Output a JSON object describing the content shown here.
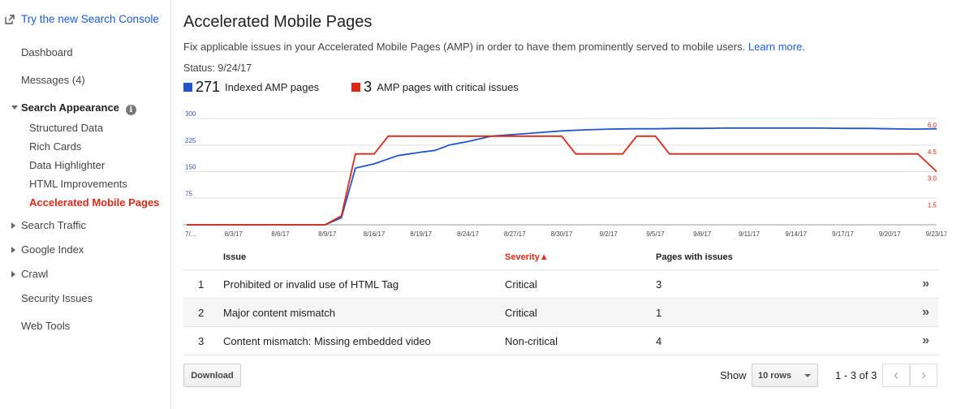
{
  "sidebar": {
    "console_link": "Try the new Search Console",
    "items": {
      "dashboard": "Dashboard",
      "messages": "Messages (4)",
      "search_appearance": "Search Appearance",
      "structured_data": "Structured Data",
      "rich_cards": "Rich Cards",
      "data_highlighter": "Data Highlighter",
      "html_improvements": "HTML Improvements",
      "amp": "Accelerated Mobile Pages",
      "search_traffic": "Search Traffic",
      "google_index": "Google Index",
      "crawl": "Crawl",
      "security_issues": "Security Issues",
      "web_tools": "Web Tools"
    }
  },
  "main": {
    "title": "Accelerated Mobile Pages",
    "description": "Fix applicable issues in your Accelerated Mobile Pages (AMP) in order to have them prominently served to mobile users.",
    "learn_more": "Learn more.",
    "status": "Status: 9/24/17",
    "legend": {
      "indexed_count": "271",
      "indexed_label": "Indexed AMP pages",
      "critical_count": "3",
      "critical_label": "AMP pages with critical issues"
    }
  },
  "colors": {
    "blue": "#2255cc",
    "red": "#dd2a16"
  },
  "chart_data": {
    "type": "line",
    "x": [
      "7/31/17",
      "8/3/17",
      "8/6/17",
      "8/9/17",
      "8/16/17",
      "8/19/17",
      "8/24/17",
      "8/27/17",
      "8/30/17",
      "9/2/17",
      "9/5/17",
      "9/8/17",
      "9/11/17",
      "9/14/17",
      "9/17/17",
      "9/20/17",
      "9/23/17"
    ],
    "x_tick_labels": [
      "7/...",
      "8/3/17",
      "8/6/17",
      "8/9/17",
      "8/16/17",
      "8/19/17",
      "8/24/17",
      "8/27/17",
      "8/30/17",
      "9/2/17",
      "9/5/17",
      "9/8/17",
      "9/11/17",
      "9/14/17",
      "9/17/17",
      "9/20/17",
      "9/23/17"
    ],
    "left_ticks": [
      "300",
      "225",
      "150",
      "75"
    ],
    "right_ticks": [
      "6.0",
      "4.5",
      "3.0",
      "1.5"
    ],
    "ylim_left": [
      0,
      300
    ],
    "ylim_right": [
      0,
      6
    ],
    "series": [
      {
        "name": "Indexed AMP pages",
        "axis": "left",
        "color": "#2255cc",
        "points": [
          [
            0,
            0
          ],
          [
            0.5,
            0
          ],
          [
            1,
            0
          ],
          [
            1.5,
            0
          ],
          [
            2,
            0
          ],
          [
            2.5,
            0
          ],
          [
            2.95,
            0
          ],
          [
            3.3,
            20
          ],
          [
            3.6,
            160
          ],
          [
            4,
            172
          ],
          [
            4.5,
            195
          ],
          [
            5,
            205
          ],
          [
            5.3,
            210
          ],
          [
            5.6,
            225
          ],
          [
            6,
            235
          ],
          [
            6.5,
            250
          ],
          [
            7,
            255
          ],
          [
            7.5,
            260
          ],
          [
            8,
            265
          ],
          [
            8.5,
            268
          ],
          [
            9,
            270
          ],
          [
            9.5,
            271
          ],
          [
            10,
            271
          ],
          [
            10.5,
            272
          ],
          [
            11,
            272
          ],
          [
            11.5,
            273
          ],
          [
            12,
            273
          ],
          [
            12.5,
            273
          ],
          [
            13,
            273
          ],
          [
            13.5,
            273
          ],
          [
            14,
            272
          ],
          [
            14.5,
            272
          ],
          [
            15,
            271
          ],
          [
            15.5,
            270
          ],
          [
            16,
            271
          ]
        ]
      },
      {
        "name": "AMP pages with critical issues",
        "axis": "right",
        "color": "#dd2a16",
        "points": [
          [
            0,
            0
          ],
          [
            0.5,
            0
          ],
          [
            1,
            0
          ],
          [
            1.5,
            0
          ],
          [
            2,
            0
          ],
          [
            2.5,
            0
          ],
          [
            2.95,
            0
          ],
          [
            3.3,
            0.5
          ],
          [
            3.6,
            4
          ],
          [
            4,
            4
          ],
          [
            4.3,
            5
          ],
          [
            5,
            5
          ],
          [
            6,
            5
          ],
          [
            7,
            5
          ],
          [
            7.5,
            5
          ],
          [
            8,
            5
          ],
          [
            8.3,
            4
          ],
          [
            9,
            4
          ],
          [
            9.3,
            4
          ],
          [
            9.6,
            5
          ],
          [
            10,
            5
          ],
          [
            10.3,
            4
          ],
          [
            11,
            4
          ],
          [
            12,
            4
          ],
          [
            13,
            4
          ],
          [
            14,
            4
          ],
          [
            15,
            4
          ],
          [
            15.6,
            4
          ],
          [
            16,
            3
          ]
        ]
      }
    ]
  },
  "table": {
    "headers": {
      "issue": "Issue",
      "severity": "Severity▲",
      "pages": "Pages with issues"
    },
    "rows": [
      {
        "index": "1",
        "issue": "Prohibited or invalid use of HTML Tag",
        "severity": "Critical",
        "pages": "3"
      },
      {
        "index": "2",
        "issue": "Major content mismatch",
        "severity": "Critical",
        "pages": "1"
      },
      {
        "index": "3",
        "issue": "Content mismatch: Missing embedded video",
        "severity": "Non-critical",
        "pages": "4"
      }
    ],
    "chevron": "»"
  },
  "footer": {
    "download": "Download",
    "show": "Show",
    "rows_option": "10 rows",
    "range": "1 - 3 of 3",
    "prev": "‹",
    "next": "›"
  }
}
